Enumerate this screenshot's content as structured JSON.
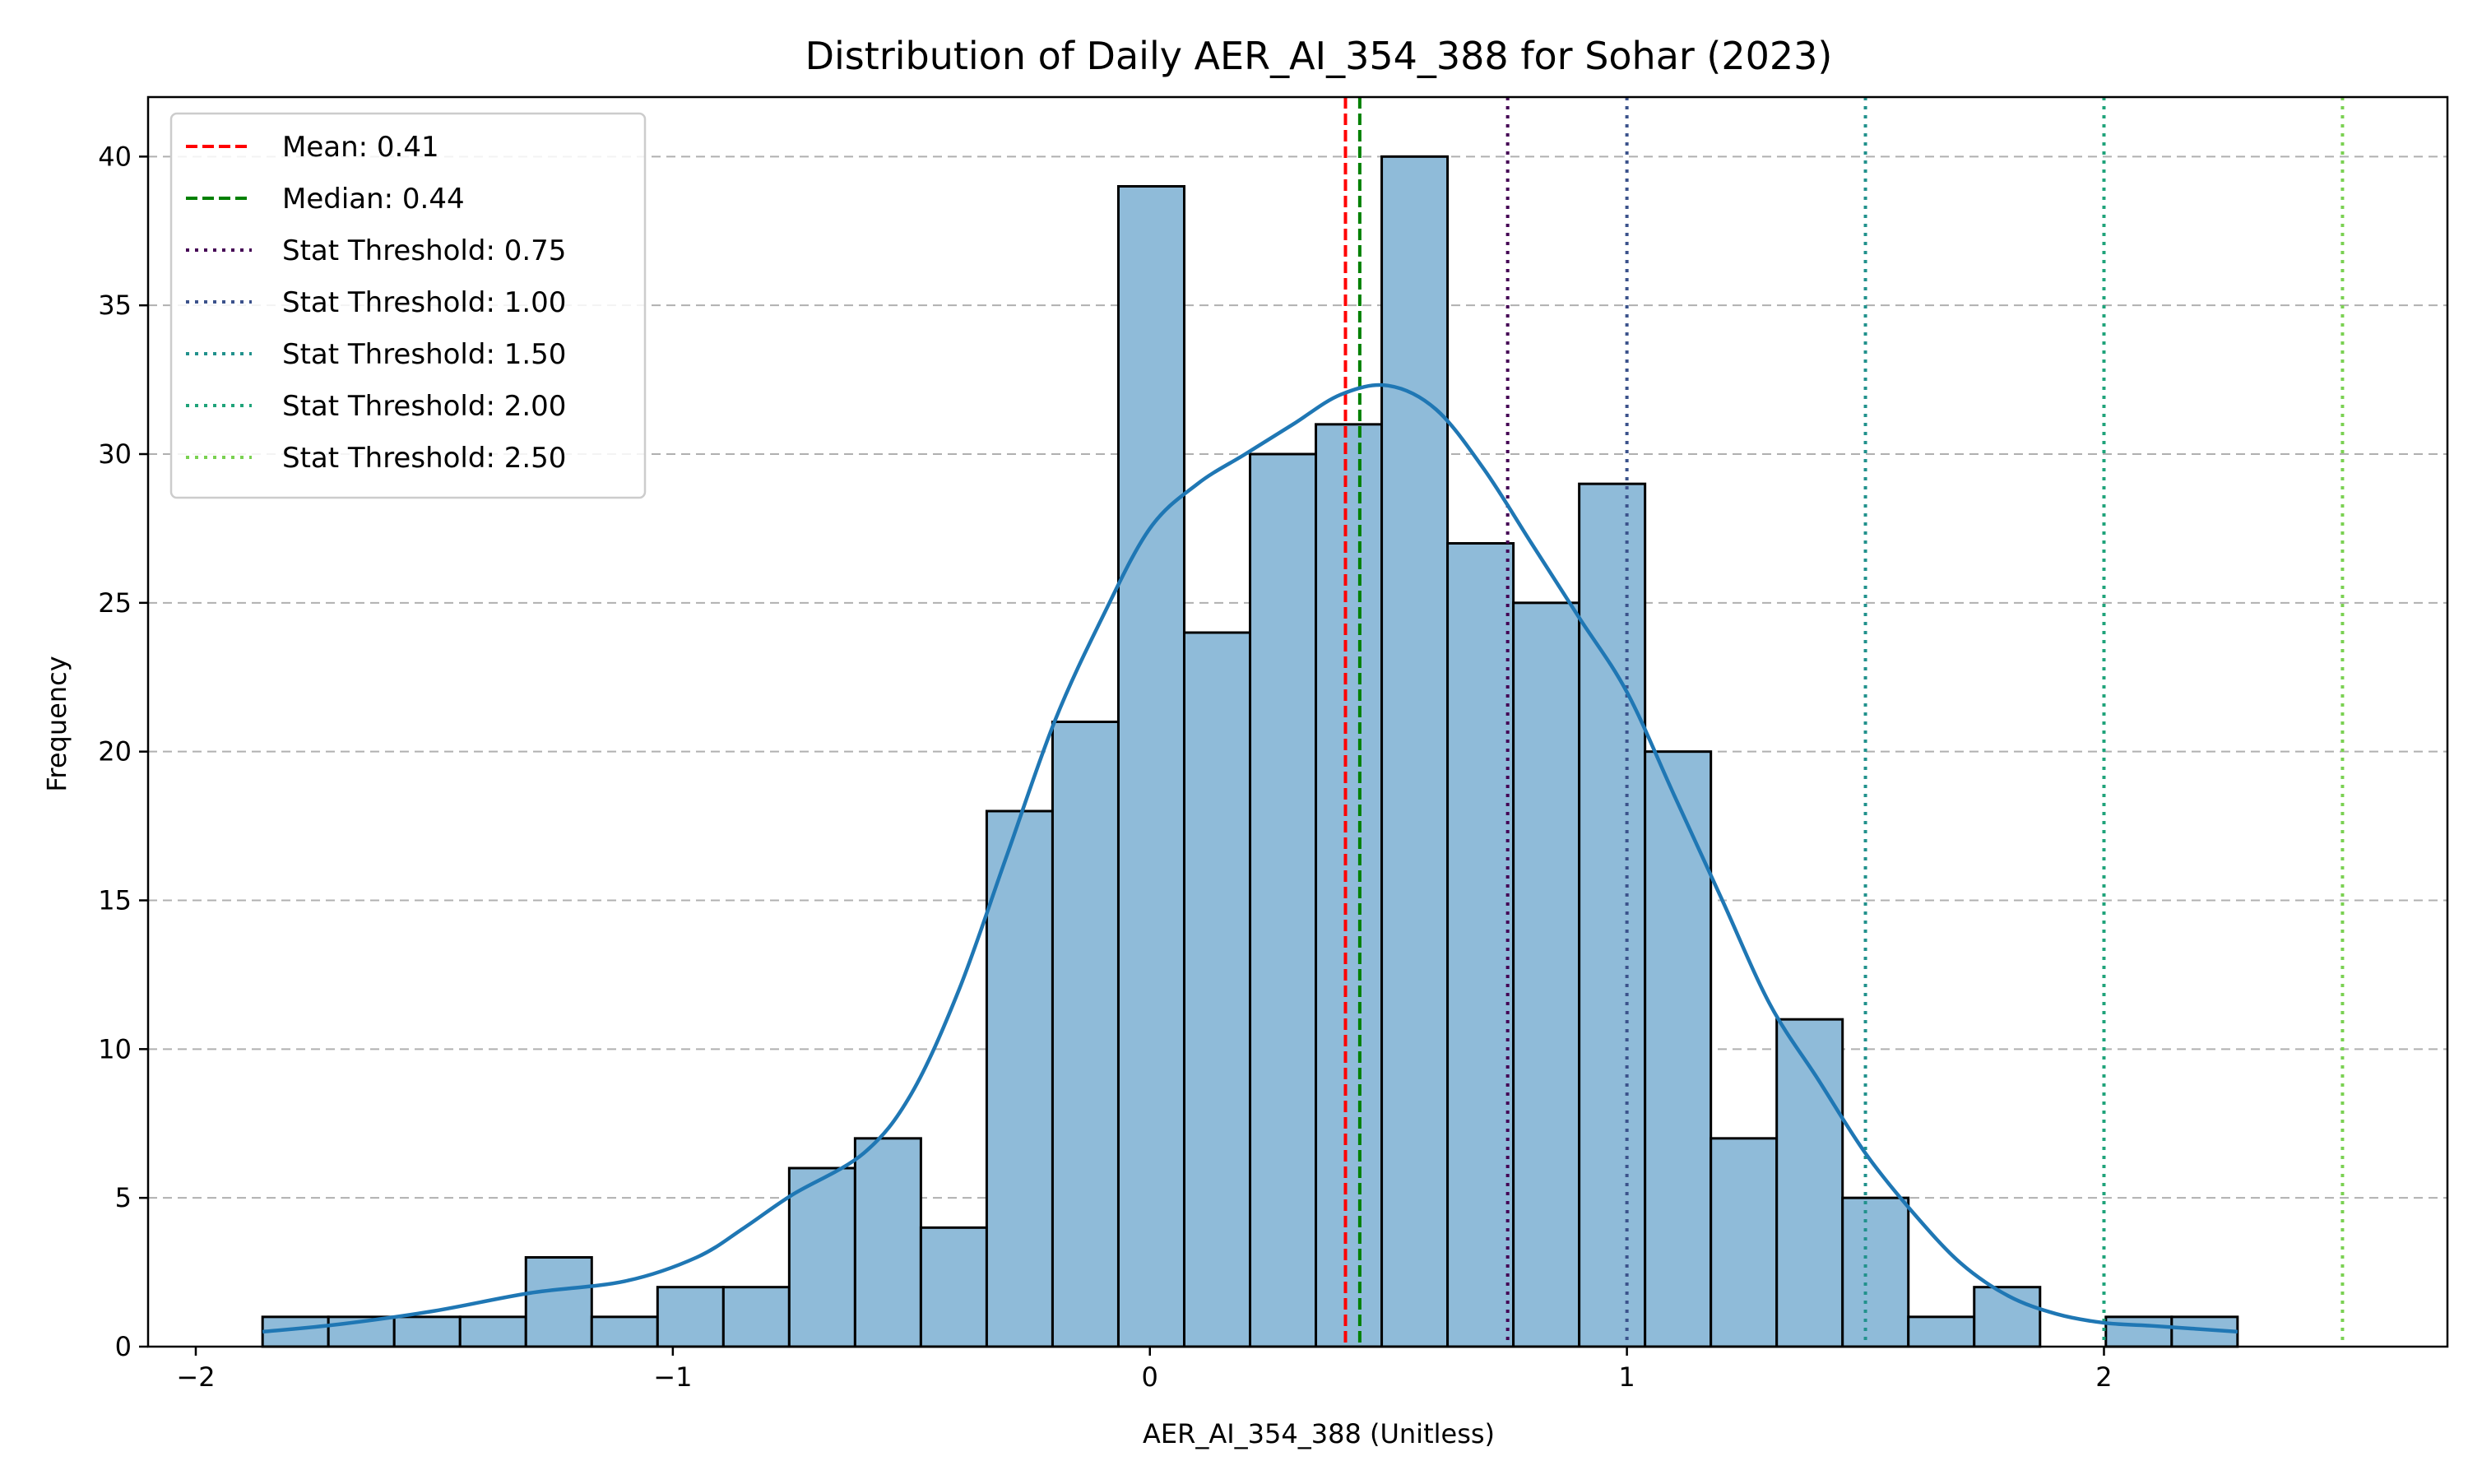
{
  "chart_data": {
    "type": "bar",
    "title": "Distribution of Daily AER_AI_354_388 for Sohar (2023)",
    "xlabel": "AER_AI_354_388 (Unitless)",
    "ylabel": "Frequency",
    "xlim": [
      -2.1,
      2.72
    ],
    "ylim": [
      0,
      42
    ],
    "xticks": [
      -2,
      -1,
      0,
      1,
      2
    ],
    "xtick_labels": [
      "−2",
      "−1",
      "0",
      "1",
      "2"
    ],
    "yticks": [
      0,
      5,
      10,
      15,
      20,
      25,
      30,
      35,
      40
    ],
    "ytick_labels": [
      "0",
      "5",
      "10",
      "15",
      "20",
      "25",
      "30",
      "35",
      "40"
    ],
    "grid": "y-dashed",
    "bin_edges": [
      -1.86,
      -1.722,
      -1.584,
      -1.446,
      -1.308,
      -1.17,
      -1.032,
      -0.894,
      -0.756,
      -0.618,
      -0.48,
      -0.342,
      -0.204,
      -0.066,
      0.072,
      0.21,
      0.348,
      0.486,
      0.624,
      0.762,
      0.9,
      1.038,
      1.176,
      1.314,
      1.452,
      1.59,
      1.728,
      1.866,
      2.004,
      2.142,
      2.28
    ],
    "counts": [
      1,
      1,
      1,
      1,
      3,
      1,
      2,
      2,
      6,
      7,
      4,
      18,
      21,
      39,
      24,
      30,
      31,
      40,
      27,
      25,
      29,
      20,
      7,
      11,
      5,
      1,
      2,
      0,
      1,
      1
    ],
    "bar_color": "#8fbbd9",
    "bar_edge_color": "#000000",
    "kde": {
      "color": "#1f77b4",
      "x": [
        -1.86,
        -1.7,
        -1.5,
        -1.3,
        -1.1,
        -0.95,
        -0.85,
        -0.75,
        -0.6,
        -0.5,
        -0.4,
        -0.3,
        -0.2,
        -0.1,
        0.0,
        0.1,
        0.2,
        0.3,
        0.4,
        0.5,
        0.6,
        0.7,
        0.8,
        0.9,
        1.0,
        1.1,
        1.2,
        1.3,
        1.4,
        1.5,
        1.6,
        1.7,
        1.8,
        1.9,
        2.0,
        2.1,
        2.28
      ],
      "y": [
        0.5,
        0.75,
        1.2,
        1.8,
        2.2,
        3.0,
        4.0,
        5.1,
        6.5,
        8.5,
        12.0,
        16.5,
        21.0,
        24.5,
        27.5,
        29.0,
        30.0,
        31.0,
        32.0,
        32.3,
        31.5,
        29.5,
        27.0,
        24.5,
        22.0,
        18.5,
        15.0,
        11.5,
        9.0,
        6.5,
        4.5,
        2.8,
        1.7,
        1.1,
        0.8,
        0.7,
        0.5
      ]
    },
    "lines": [
      {
        "label": "Mean: 0.41",
        "x": 0.41,
        "color": "#ff0000",
        "style": "dashed"
      },
      {
        "label": "Median: 0.44",
        "x": 0.44,
        "color": "#008000",
        "style": "dashed"
      },
      {
        "label": "Stat Threshold: 0.75",
        "x": 0.75,
        "color": "#440154",
        "style": "dotted"
      },
      {
        "label": "Stat Threshold: 1.00",
        "x": 1.0,
        "color": "#3b528b",
        "style": "dotted"
      },
      {
        "label": "Stat Threshold: 1.50",
        "x": 1.5,
        "color": "#21918c",
        "style": "dotted"
      },
      {
        "label": "Stat Threshold: 2.00",
        "x": 2.0,
        "color": "#1fa37a",
        "style": "dotted"
      },
      {
        "label": "Stat Threshold: 2.50",
        "x": 2.5,
        "color": "#7ad151",
        "style": "dotted"
      }
    ],
    "legend_position": "top-left"
  }
}
